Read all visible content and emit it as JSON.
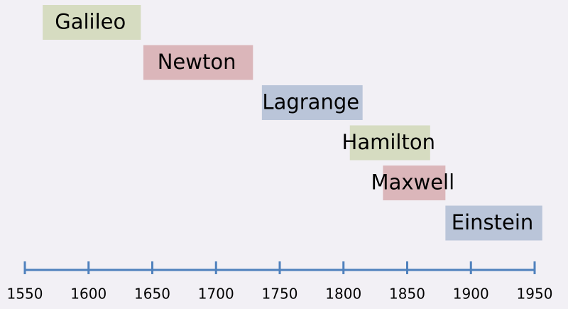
{
  "chart_data": {
    "type": "timeline",
    "categories": [
      "Galileo",
      "Newton",
      "Lagrange",
      "Hamilton",
      "Maxwell",
      "Einstein"
    ],
    "start": [
      1564,
      1643,
      1736,
      1805,
      1831,
      1880
    ],
    "end": [
      1641,
      1729,
      1815,
      1868,
      1880,
      1956
    ],
    "colors": [
      "#d6dcc1",
      "#dbb6ba",
      "#bac5d9",
      "#d6dcc1",
      "#dbb6ba",
      "#bac5d9"
    ],
    "axis_color": "#4f81bd",
    "xlim": [
      1550,
      1950
    ],
    "xticks": [
      1550,
      1600,
      1650,
      1700,
      1750,
      1800,
      1850,
      1900,
      1950
    ]
  }
}
